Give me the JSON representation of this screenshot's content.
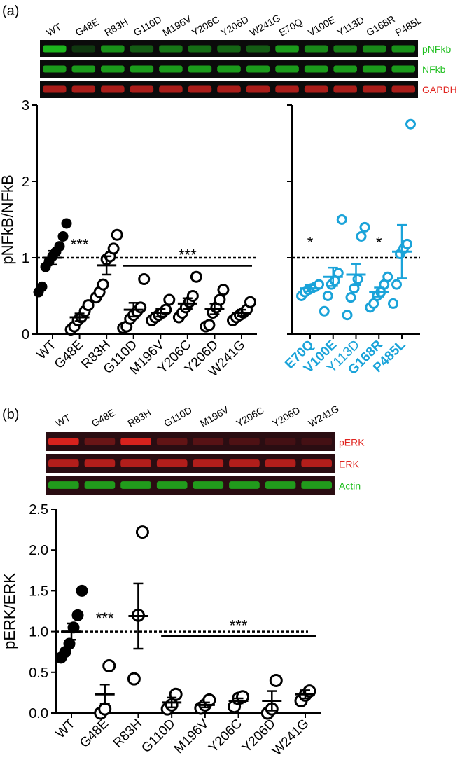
{
  "panel_a": {
    "panel_label": "(a)",
    "blot_lanes": [
      "WT",
      "G48E",
      "R83H",
      "G110D",
      "M196V",
      "Y206C",
      "Y206D",
      "W241G",
      "E70Q",
      "V100E",
      "Y113D",
      "G168R",
      "P485L"
    ],
    "blot_rows": [
      {
        "label": "pNFkb",
        "color": "#1fbf1f"
      },
      {
        "label": "NFkb",
        "color": "#1fbf1f"
      },
      {
        "label": "GAPDH",
        "color": "#e0241f"
      }
    ]
  },
  "panel_b": {
    "panel_label": "(b)",
    "blot_lanes": [
      "WT",
      "G48E",
      "R83H",
      "G110D",
      "M196V",
      "Y206C",
      "Y206D",
      "W241G"
    ],
    "blot_rows": [
      {
        "label": "pERK",
        "color": "#e0241f"
      },
      {
        "label": "ERK",
        "color": "#e0241f"
      },
      {
        "label": "Actin",
        "color": "#1fbf1f"
      }
    ]
  },
  "colors": {
    "black": "#000000",
    "blue": "#1aa3d9"
  },
  "chart_data": [
    {
      "type": "scatter",
      "ylabel": "pNFkB/NFkB",
      "ylim": [
        0,
        3
      ],
      "yticks": [
        0,
        1,
        2,
        3
      ],
      "reference_line": 1,
      "categories": [
        "WT",
        "G48E",
        "R83H",
        "G110D",
        "M196V",
        "Y206C",
        "Y206D",
        "W241G"
      ],
      "series": [
        {
          "category": "WT",
          "filled": true,
          "color": "#000000",
          "mean": 1.0,
          "sem": 0.09,
          "points": [
            0.55,
            0.62,
            0.88,
            0.95,
            1.02,
            1.08,
            1.15,
            1.28,
            1.45
          ]
        },
        {
          "category": "G48E",
          "filled": false,
          "color": "#000000",
          "mean": 0.22,
          "sem": 0.05,
          "points": [
            0.06,
            0.1,
            0.18,
            0.22,
            0.3,
            0.38
          ]
        },
        {
          "category": "R83H",
          "filled": false,
          "color": "#000000",
          "mean": 0.9,
          "sem": 0.12,
          "points": [
            0.48,
            0.55,
            0.65,
            0.98,
            1.02,
            1.12,
            1.3
          ]
        },
        {
          "category": "G110D",
          "filled": false,
          "color": "#000000",
          "mean": 0.32,
          "sem": 0.09,
          "points": [
            0.08,
            0.1,
            0.2,
            0.25,
            0.3,
            0.35,
            0.72
          ]
        },
        {
          "category": "M196V",
          "filled": false,
          "color": "#000000",
          "mean": 0.28,
          "sem": 0.05,
          "points": [
            0.18,
            0.22,
            0.25,
            0.28,
            0.32,
            0.45
          ]
        },
        {
          "category": "Y206C",
          "filled": false,
          "color": "#000000",
          "mean": 0.4,
          "sem": 0.07,
          "points": [
            0.22,
            0.28,
            0.35,
            0.42,
            0.5,
            0.75
          ]
        },
        {
          "category": "Y206D",
          "filled": false,
          "color": "#000000",
          "mean": 0.33,
          "sem": 0.07,
          "points": [
            0.1,
            0.12,
            0.28,
            0.35,
            0.45,
            0.58
          ]
        },
        {
          "category": "W241G",
          "filled": false,
          "color": "#000000",
          "mean": 0.28,
          "sem": 0.04,
          "points": [
            0.18,
            0.22,
            0.25,
            0.28,
            0.32,
            0.42
          ]
        }
      ],
      "annotations": [
        {
          "text": "***",
          "category": "G48E",
          "y": 1.05
        },
        {
          "text": "***",
          "from": "G110D",
          "to": "W241G",
          "y": 1.05
        }
      ]
    },
    {
      "type": "scatter",
      "ylim": [
        0,
        3
      ],
      "reference_line": 1,
      "categories": [
        "E70Q",
        "V100E",
        "Y113D",
        "G168R",
        "P485L"
      ],
      "category_label_bold": [
        true,
        true,
        false,
        true,
        true
      ],
      "series": [
        {
          "category": "E70Q",
          "filled": false,
          "color": "#1aa3d9",
          "mean": 0.6,
          "sem": 0.04,
          "points": [
            0.5,
            0.55,
            0.58,
            0.6,
            0.62,
            0.65
          ]
        },
        {
          "category": "V100E",
          "filled": false,
          "color": "#1aa3d9",
          "mean": 0.75,
          "sem": 0.12,
          "points": [
            0.3,
            0.5,
            0.65,
            0.7,
            0.8,
            1.5
          ]
        },
        {
          "category": "Y113D",
          "filled": false,
          "color": "#1aa3d9",
          "mean": 0.78,
          "sem": 0.14,
          "points": [
            0.25,
            0.48,
            0.6,
            0.72,
            1.28,
            1.4
          ]
        },
        {
          "category": "G168R",
          "filled": false,
          "color": "#1aa3d9",
          "mean": 0.55,
          "sem": 0.06,
          "points": [
            0.35,
            0.4,
            0.5,
            0.55,
            0.65,
            0.75
          ]
        },
        {
          "category": "P485L",
          "filled": false,
          "color": "#1aa3d9",
          "mean": 1.08,
          "sem": 0.35,
          "points": [
            0.4,
            0.65,
            1.05,
            1.12,
            1.18,
            2.75
          ]
        }
      ],
      "annotations": [
        {
          "text": "*",
          "category": "E70Q",
          "y": 1.08
        },
        {
          "text": "*",
          "category": "G168R",
          "y": 1.08
        }
      ]
    },
    {
      "type": "scatter",
      "ylabel": "pERK/ERK",
      "ylim": [
        0,
        2.5
      ],
      "yticks": [
        0.0,
        0.5,
        1.0,
        1.5,
        2.0,
        2.5
      ],
      "reference_line": 1.0,
      "categories": [
        "WT",
        "G48E",
        "R83H",
        "G110D",
        "M196V",
        "Y206C",
        "Y206D",
        "W241G"
      ],
      "series": [
        {
          "category": "WT",
          "filled": true,
          "color": "#000000",
          "mean": 1.0,
          "sem": 0.1,
          "points": [
            0.68,
            0.75,
            0.85,
            1.05,
            1.2,
            1.5
          ]
        },
        {
          "category": "G48E",
          "filled": false,
          "color": "#000000",
          "mean": 0.23,
          "sem": 0.12,
          "points": [
            0.0,
            0.05,
            0.58
          ]
        },
        {
          "category": "R83H",
          "filled": false,
          "color": "#000000",
          "mean": 1.19,
          "sem": 0.4,
          "points": [
            0.42,
            1.2,
            2.22
          ]
        },
        {
          "category": "G110D",
          "filled": false,
          "color": "#000000",
          "mean": 0.13,
          "sem": 0.06,
          "points": [
            0.05,
            0.1,
            0.23
          ]
        },
        {
          "category": "M196V",
          "filled": false,
          "color": "#000000",
          "mean": 0.1,
          "sem": 0.03,
          "points": [
            0.06,
            0.1,
            0.16
          ]
        },
        {
          "category": "Y206C",
          "filled": false,
          "color": "#000000",
          "mean": 0.15,
          "sem": 0.03,
          "points": [
            0.08,
            0.18,
            0.2
          ]
        },
        {
          "category": "Y206D",
          "filled": false,
          "color": "#000000",
          "mean": 0.15,
          "sem": 0.12,
          "points": [
            0.0,
            0.05,
            0.4
          ]
        },
        {
          "category": "W241G",
          "filled": false,
          "color": "#000000",
          "mean": 0.23,
          "sem": 0.05,
          "points": [
            0.15,
            0.22,
            0.27
          ]
        }
      ],
      "annotations": [
        {
          "text": "***",
          "category": "G48E",
          "y": 1.05
        },
        {
          "text": "***",
          "from": "G110D",
          "to": "W241G",
          "y": 1.08
        }
      ]
    }
  ]
}
